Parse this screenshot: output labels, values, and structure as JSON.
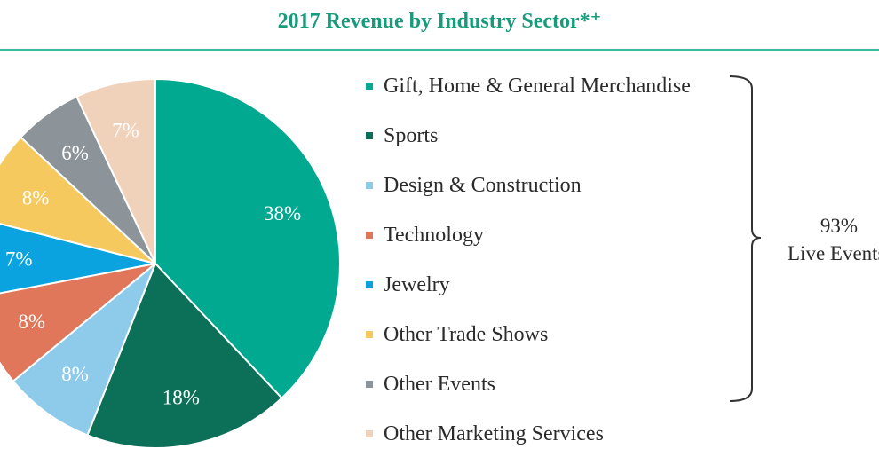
{
  "chart_data": {
    "type": "pie",
    "title": "2017 Revenue by Industry Sector*⁺",
    "slices": [
      {
        "label": "Gift, Home & General Merchandise",
        "value": 38,
        "display": "38%",
        "color": "#00a990"
      },
      {
        "label": "Sports",
        "value": 18,
        "display": "18%",
        "color": "#0c6f57"
      },
      {
        "label": "Design & Construction",
        "value": 8,
        "display": "8%",
        "color": "#8ecbeb"
      },
      {
        "label": "Technology",
        "value": 8,
        "display": "8%",
        "color": "#e0765a"
      },
      {
        "label": "Jewelry",
        "value": 7,
        "display": "7%",
        "color": "#0aa3df"
      },
      {
        "label": "Other Trade Shows",
        "value": 8,
        "display": "8%",
        "color": "#f5c95d"
      },
      {
        "label": "Other Events",
        "value": 6,
        "display": "6%",
        "color": "#8c9399"
      },
      {
        "label": "Other Marketing Services",
        "value": 7,
        "display": "7%",
        "color": "#f0d1b9"
      }
    ],
    "legend_position": "right",
    "bracket": {
      "value": "93%",
      "caption": "Live Events",
      "covers": 7
    }
  },
  "colors": {
    "title": "#1a9a7c",
    "rule": "#3fb79b"
  }
}
